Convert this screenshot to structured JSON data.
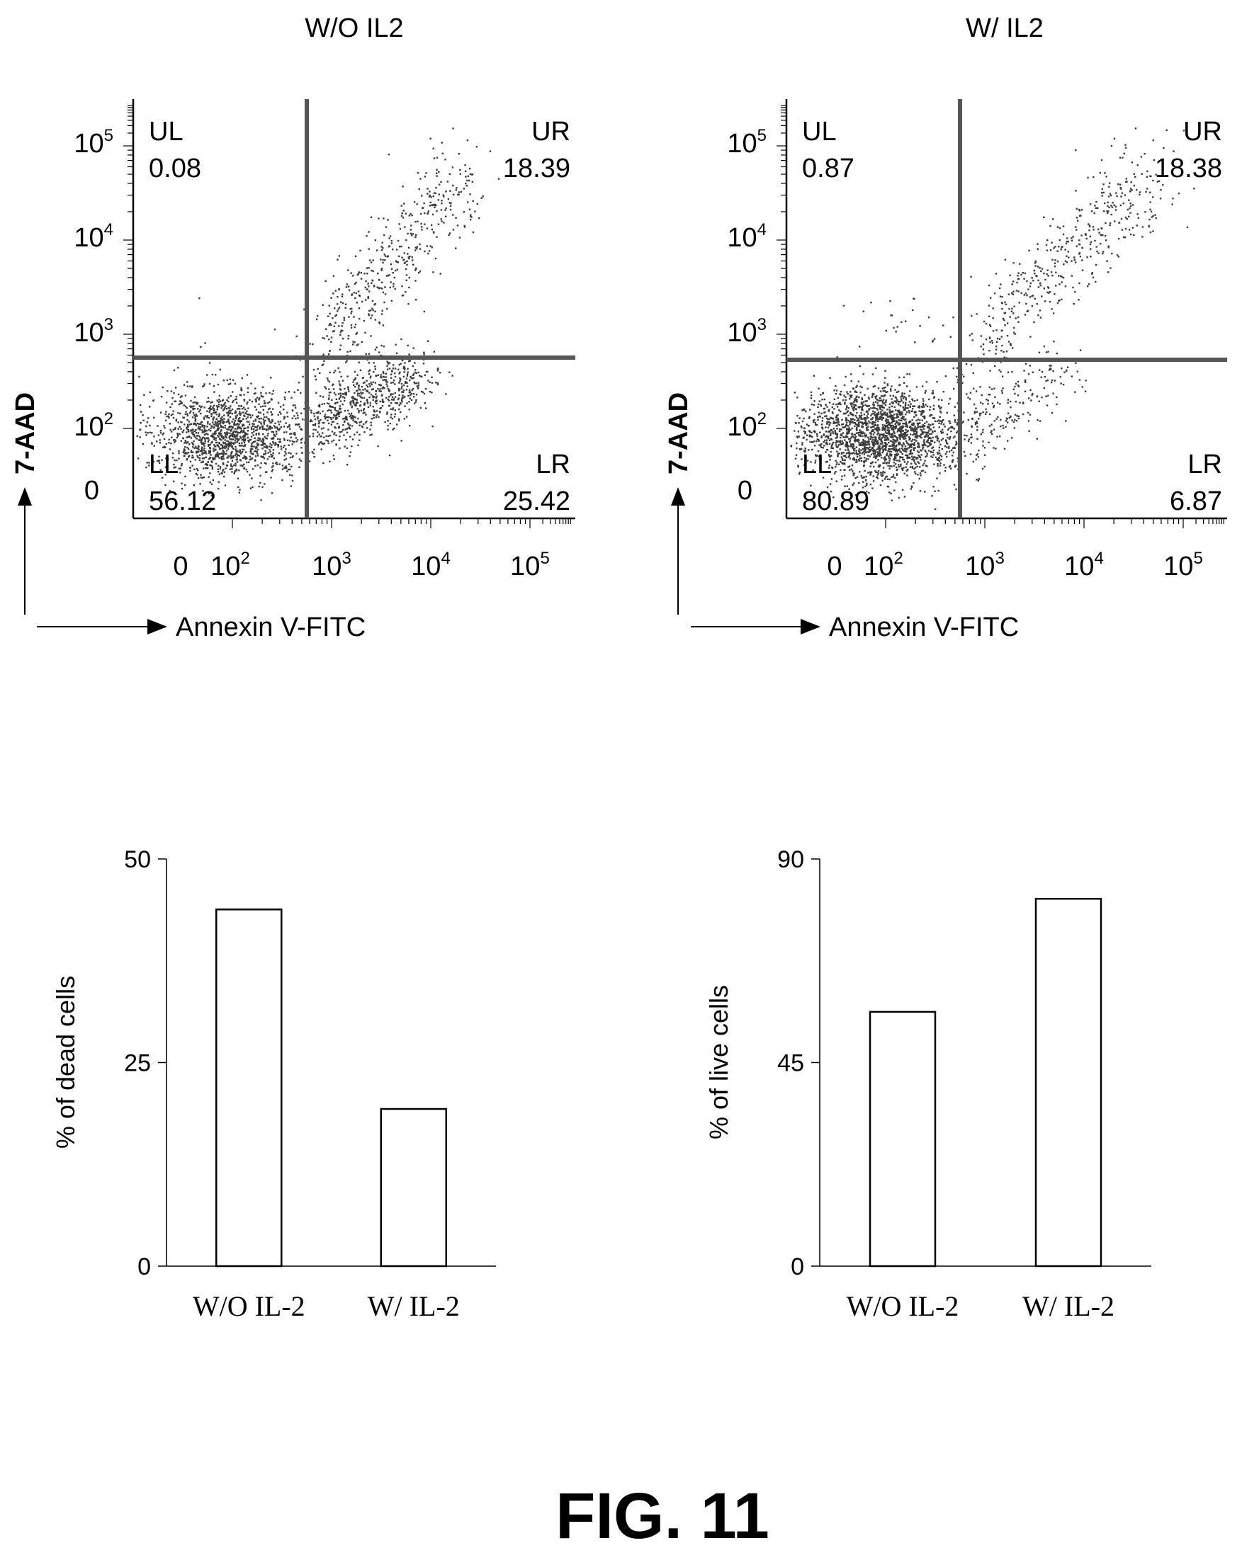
{
  "figure_label": "FIG. 11",
  "colors": {
    "ink": "#000000",
    "dots": "#3a3a3a",
    "gate": "#555555",
    "background": "#ffffff"
  },
  "chart_data": [
    {
      "type": "scatter",
      "title": "W/O IL2",
      "xlabel": "Annexin V-FITC",
      "ylabel": "7-AAD",
      "scale": "log",
      "x_ticks": [
        "0",
        "10",
        "10",
        "10",
        "10"
      ],
      "x_tick_exp": [
        "",
        "2",
        "3",
        "4",
        "5"
      ],
      "y_ticks": [
        "0",
        "10",
        "10",
        "10",
        "10"
      ],
      "y_tick_exp": [
        "",
        "2",
        "3",
        "4",
        "5"
      ],
      "quadrants": [
        {
          "name": "UL",
          "value": "0.08"
        },
        {
          "name": "UR",
          "value": "18.39"
        },
        {
          "name": "LL",
          "value": "56.12"
        },
        {
          "name": "LR",
          "value": "25.42"
        }
      ]
    },
    {
      "type": "scatter",
      "title": "W/ IL2",
      "xlabel": "Annexin V-FITC",
      "ylabel": "7-AAD",
      "scale": "log",
      "x_ticks": [
        "0",
        "10",
        "10",
        "10",
        "10"
      ],
      "x_tick_exp": [
        "",
        "2",
        "3",
        "4",
        "5"
      ],
      "y_ticks": [
        "0",
        "10",
        "10",
        "10",
        "10"
      ],
      "y_tick_exp": [
        "",
        "2",
        "3",
        "4",
        "5"
      ],
      "quadrants": [
        {
          "name": "UL",
          "value": "0.87"
        },
        {
          "name": "UR",
          "value": "18.38"
        },
        {
          "name": "LL",
          "value": "80.89"
        },
        {
          "name": "LR",
          "value": "6.87"
        }
      ]
    },
    {
      "type": "bar",
      "ylabel": "% of dead cells",
      "categories": [
        "W/O IL-2",
        "W/ IL-2"
      ],
      "values": [
        43.8,
        19.3
      ],
      "ylim": [
        0,
        50
      ],
      "yticks": [
        "0",
        "25",
        "50"
      ]
    },
    {
      "type": "bar",
      "ylabel": "% of live cells",
      "categories": [
        "W/O IL-2",
        "W/ IL-2"
      ],
      "values": [
        56.2,
        81.2
      ],
      "ylim": [
        0,
        90
      ],
      "yticks": [
        "0",
        "45",
        "90"
      ]
    }
  ]
}
